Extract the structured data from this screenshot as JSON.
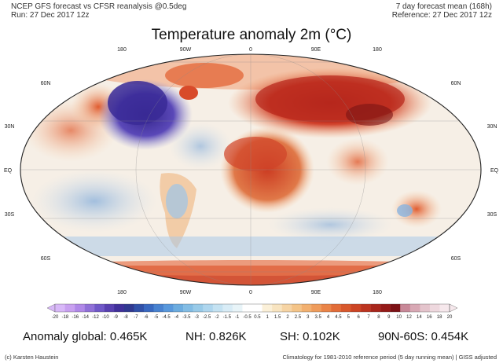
{
  "header": {
    "left_line1": "NCEP GFS forecast vs CFSR reanalysis @0.5deg",
    "left_line2": "Run: 27 Dec 2017 12z",
    "right_line1": "7 day forecast mean (168h)",
    "right_line2": "Reference: 27 Dec 2017 12z"
  },
  "title": "Temperature anomaly 2m (°C)",
  "map": {
    "projection": "global ellipse",
    "lon_labels": [
      "180",
      "90W",
      "0",
      "90E",
      "180"
    ],
    "lat_labels_left": [
      "60N",
      "30N",
      "EQ",
      "30S",
      "60S"
    ],
    "lat_labels_right": [
      "60N",
      "30N",
      "EQ",
      "30S",
      "60S"
    ],
    "anomalies": [
      {
        "region": "North America east",
        "level": "strong cold",
        "color": "#4a3aa8"
      },
      {
        "region": "North America west",
        "level": "warm",
        "color": "#e0603a"
      },
      {
        "region": "Europe / Russia",
        "level": "strong warm",
        "color": "#c82a1e"
      },
      {
        "region": "North Africa / Middle East",
        "level": "warm",
        "color": "#d8502a"
      },
      {
        "region": "Antarctica",
        "level": "warm",
        "color": "#c83a22"
      },
      {
        "region": "Southern Ocean",
        "level": "cool",
        "color": "#8fb8e0"
      },
      {
        "region": "Australia",
        "level": "warm",
        "color": "#e26a3a"
      }
    ]
  },
  "colorbar": {
    "labels": [
      "-20",
      "-18",
      "-16",
      "-14",
      "-12",
      "-10",
      "-9",
      "-8",
      "-7",
      "-6",
      "-5",
      "-4.5",
      "-4",
      "-3.5",
      "-3",
      "-2.5",
      "-2",
      "-1.5",
      "-1",
      "-0.5",
      "0.5",
      "1",
      "1.5",
      "2",
      "2.5",
      "3",
      "3.5",
      "4",
      "4.5",
      "5",
      "6",
      "7",
      "8",
      "9",
      "10",
      "12",
      "14",
      "16",
      "18",
      "20"
    ],
    "colors": [
      "#d8b8f8",
      "#c8a0f0",
      "#b088e8",
      "#9070d8",
      "#7058c8",
      "#5840b0",
      "#40309a",
      "#303890",
      "#3050a8",
      "#3868c0",
      "#4882d0",
      "#5898dc",
      "#6cacdf",
      "#82bce4",
      "#98cae8",
      "#aed6ee",
      "#c4e2f2",
      "#d8ecf6",
      "#e8f4f8",
      "#ffffff",
      "#ffffff",
      "#fbf0d8",
      "#f8e4c0",
      "#f6d4a4",
      "#f4c488",
      "#f2b070",
      "#ef9c5c",
      "#ea8448",
      "#e26c38",
      "#d8582c",
      "#cc4424",
      "#bc3420",
      "#a8261c",
      "#941a18",
      "#7c1216",
      "#c88898",
      "#d8a8b4",
      "#e4c4cc",
      "#eed8de",
      "#f6e8ec"
    ]
  },
  "stats": {
    "global": "Anomaly global: 0.465K",
    "nh": "NH: 0.826K",
    "sh": "SH: 0.102K",
    "band": "90N-60S: 0.454K"
  },
  "footer": {
    "left": "(c) Karsten Haustein",
    "right": "Climatology for 1981-2010 reference period (5 day running mean) | GISS adjusted"
  }
}
